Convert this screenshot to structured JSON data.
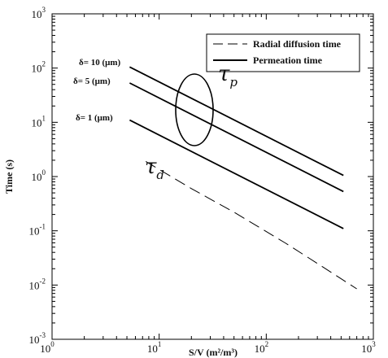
{
  "chart_data": {
    "type": "line",
    "xscale": "log",
    "yscale": "log",
    "xlim": [
      1,
      1000
    ],
    "ylim": [
      0.001,
      1000
    ],
    "xlabel": "S/V (m²/m³)",
    "ylabel": "Time (s)",
    "x_ticks": [
      {
        "base": "10",
        "exp": "0",
        "value": 1
      },
      {
        "base": "10",
        "exp": "1",
        "value": 10
      },
      {
        "base": "10",
        "exp": "2",
        "value": 100
      },
      {
        "base": "10",
        "exp": "3",
        "value": 1000
      }
    ],
    "y_ticks": [
      {
        "base": "10",
        "exp": "-3",
        "value": 0.001
      },
      {
        "base": "10",
        "exp": "-2",
        "value": 0.01
      },
      {
        "base": "10",
        "exp": "-1",
        "value": 0.1
      },
      {
        "base": "10",
        "exp": "0",
        "value": 1
      },
      {
        "base": "10",
        "exp": "1",
        "value": 10
      },
      {
        "base": "10",
        "exp": "2",
        "value": 100
      },
      {
        "base": "10",
        "exp": "3",
        "value": 1000
      }
    ],
    "legend": {
      "position": "top-right",
      "entries": [
        {
          "label": "Radial diffusion time",
          "style": "dashed"
        },
        {
          "label": "Permeation time",
          "style": "solid"
        }
      ]
    },
    "series": [
      {
        "label": "δ= 10 (μm)",
        "style": "solid",
        "x": [
          5.3,
          525
        ],
        "y": [
          105,
          1.05
        ]
      },
      {
        "label": "δ= 5 (μm)",
        "style": "solid",
        "x": [
          5.3,
          525
        ],
        "y": [
          53,
          0.53
        ]
      },
      {
        "label": "δ= 1 (μm)",
        "style": "solid",
        "x": [
          5.3,
          525
        ],
        "y": [
          11,
          0.11
        ]
      },
      {
        "style": "dashed",
        "x": [
          7.5,
          20,
          50,
          150,
          300,
          700
        ],
        "y": [
          1.9,
          0.6,
          0.22,
          0.06,
          0.025,
          0.0085
        ]
      }
    ],
    "annotations": [
      {
        "symbol": "τ",
        "subscript": "p"
      },
      {
        "symbol": "τ",
        "subscript": "d"
      }
    ],
    "grid": false
  }
}
